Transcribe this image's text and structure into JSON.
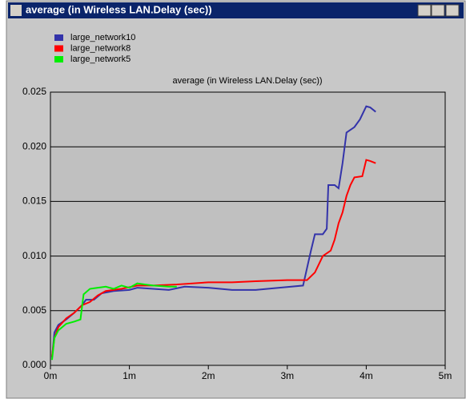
{
  "window": {
    "title": "average (in Wireless LAN.Delay (sec))"
  },
  "chart_data": {
    "type": "line",
    "title": "average (in Wireless LAN.Delay (sec))",
    "legend": "upper-left",
    "grid": true,
    "xlim": [
      0,
      5
    ],
    "xticks": [
      {
        "value": 0,
        "label": "0m"
      },
      {
        "value": 1,
        "label": "1m"
      },
      {
        "value": 2,
        "label": "2m"
      },
      {
        "value": 3,
        "label": "3m"
      },
      {
        "value": 4,
        "label": "4m"
      },
      {
        "value": 5,
        "label": "5m"
      }
    ],
    "ylim": [
      0,
      0.025
    ],
    "yticks": [
      {
        "value": 0,
        "label": "0.000"
      },
      {
        "value": 0.005,
        "label": "0.005"
      },
      {
        "value": 0.01,
        "label": "0.010"
      },
      {
        "value": 0.015,
        "label": "0.015"
      },
      {
        "value": 0.02,
        "label": "0.020"
      },
      {
        "value": 0.025,
        "label": "0.025"
      }
    ],
    "series": [
      {
        "name": "large_network10",
        "color": "#3333aa",
        "x": [
          0.02,
          0.05,
          0.1,
          0.2,
          0.3,
          0.4,
          0.45,
          0.55,
          0.65,
          0.8,
          1.0,
          1.1,
          1.3,
          1.5,
          1.7,
          2.0,
          2.3,
          2.6,
          2.9,
          3.2,
          3.3,
          3.35,
          3.45,
          3.5,
          3.52,
          3.6,
          3.65,
          3.7,
          3.75,
          3.85,
          3.92,
          4.0,
          4.05,
          4.12
        ],
        "values": [
          0.0007,
          0.003,
          0.0037,
          0.0042,
          0.0048,
          0.0055,
          0.006,
          0.006,
          0.0066,
          0.0068,
          0.0069,
          0.0071,
          0.007,
          0.0069,
          0.0072,
          0.0071,
          0.0069,
          0.0069,
          0.0071,
          0.0073,
          0.0105,
          0.012,
          0.012,
          0.0125,
          0.0165,
          0.0165,
          0.0162,
          0.0185,
          0.0213,
          0.0218,
          0.0225,
          0.0237,
          0.0236,
          0.0232
        ]
      },
      {
        "name": "large_network8",
        "color": "#ff0000",
        "x": [
          0.02,
          0.05,
          0.1,
          0.2,
          0.3,
          0.4,
          0.5,
          0.6,
          0.7,
          0.9,
          1.1,
          1.3,
          1.6,
          2.0,
          2.3,
          2.6,
          3.0,
          3.25,
          3.35,
          3.45,
          3.55,
          3.6,
          3.65,
          3.7,
          3.75,
          3.8,
          3.85,
          3.95,
          4.0,
          4.05,
          4.12
        ],
        "values": [
          0.0008,
          0.0025,
          0.0035,
          0.0043,
          0.0048,
          0.0055,
          0.0058,
          0.0064,
          0.0068,
          0.007,
          0.0073,
          0.0073,
          0.0074,
          0.0076,
          0.0076,
          0.0077,
          0.0078,
          0.0078,
          0.0085,
          0.01,
          0.0105,
          0.0115,
          0.013,
          0.014,
          0.0155,
          0.0165,
          0.0172,
          0.0173,
          0.0188,
          0.0187,
          0.0185
        ]
      },
      {
        "name": "large_network5",
        "color": "#00ee00",
        "x": [
          0.02,
          0.05,
          0.1,
          0.2,
          0.3,
          0.38,
          0.42,
          0.5,
          0.6,
          0.7,
          0.8,
          0.9,
          1.0,
          1.1,
          1.2,
          1.3,
          1.5,
          1.6
        ],
        "values": [
          0.0005,
          0.0025,
          0.0032,
          0.0038,
          0.004,
          0.0042,
          0.0065,
          0.007,
          0.0071,
          0.0072,
          0.007,
          0.0073,
          0.0071,
          0.0075,
          0.0074,
          0.0073,
          0.0072,
          0.0072
        ]
      }
    ]
  }
}
